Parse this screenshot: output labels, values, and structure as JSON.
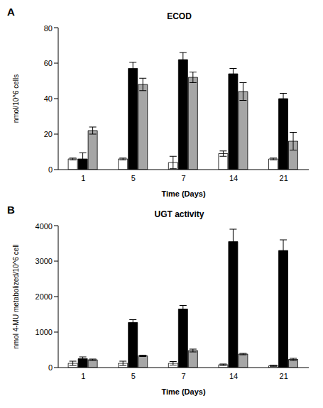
{
  "chart_data": [
    {
      "type": "bar",
      "annotations": [
        "A"
      ],
      "title": "ECOD",
      "x_label": "Time (Days)",
      "y_label": "nmol/10^6 cells",
      "categories": [
        "1",
        "5",
        "7",
        "14",
        "21"
      ],
      "ylim": [
        0,
        80
      ],
      "yticks": [
        0,
        20,
        40,
        60,
        80
      ],
      "grid": false,
      "series": [
        {
          "color": "#ffffff",
          "values": [
            6,
            6,
            4,
            9,
            6
          ],
          "errors": [
            0.5,
            0.5,
            3.5,
            1.5,
            0.5
          ]
        },
        {
          "color": "#000000",
          "values": [
            6,
            57,
            62,
            54,
            40
          ],
          "errors": [
            3.5,
            3.5,
            4,
            3,
            3
          ]
        },
        {
          "color": "#a6a6a6",
          "values": [
            22,
            48,
            52,
            44,
            16
          ],
          "errors": [
            2,
            3.5,
            3,
            5,
            5
          ]
        }
      ]
    },
    {
      "type": "bar",
      "annotations": [
        "B"
      ],
      "title": "UGT activity",
      "x_label": "Time (Days)",
      "y_label": "nmol 4-MU metabolized/10^6 cell",
      "categories": [
        "1",
        "5",
        "7",
        "14",
        "21"
      ],
      "ylim": [
        0,
        4000
      ],
      "yticks": [
        0,
        1000,
        2000,
        3000,
        4000
      ],
      "grid": false,
      "series": [
        {
          "color": "#ffffff",
          "values": [
            120,
            120,
            120,
            80,
            50
          ],
          "errors": [
            60,
            60,
            50,
            20,
            15
          ]
        },
        {
          "color": "#000000",
          "values": [
            250,
            1270,
            1650,
            3550,
            3300
          ],
          "errors": [
            50,
            80,
            100,
            350,
            300
          ]
        },
        {
          "color": "#a6a6a6",
          "values": [
            220,
            330,
            480,
            380,
            230
          ],
          "errors": [
            20,
            20,
            40,
            20,
            30
          ]
        }
      ]
    }
  ]
}
